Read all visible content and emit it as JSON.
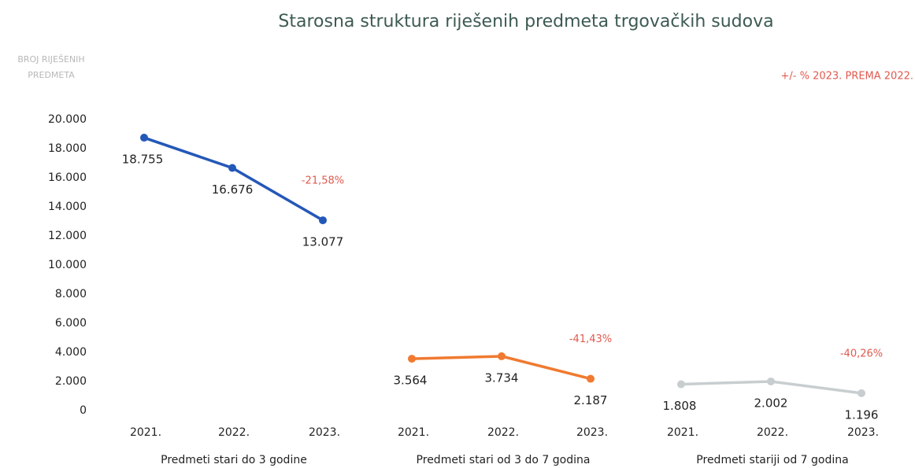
{
  "chart_data": {
    "type": "line",
    "title": "Starosna struktura riješenih predmeta trgovačkih sudova",
    "ylabel": "BROJ RIJEŠENIH PREDMETA",
    "annotation": "+/- % 2023. PREMA 2022.",
    "categories": [
      "2021.",
      "2022.",
      "2023."
    ],
    "series": [
      {
        "name": "Predmeti stari do 3 godine",
        "color": "#2458b8",
        "values": [
          18755,
          16676,
          13077
        ],
        "value_labels": [
          "18.755",
          "16.676",
          "13.077"
        ],
        "change_label": "-21,58%"
      },
      {
        "name": "Predmeti stari od 3 do 7 godina",
        "color": "#f07a30",
        "values": [
          3564,
          3734,
          2187
        ],
        "value_labels": [
          "3.564",
          "3.734",
          "2.187"
        ],
        "change_label": "-41,43%"
      },
      {
        "name": "Predmeti stariji od 7 godina",
        "color": "#c8ced0",
        "values": [
          1808,
          2002,
          1196
        ],
        "value_labels": [
          "1.808",
          "2.002",
          "1.196"
        ],
        "change_label": "-40,26%"
      }
    ],
    "ylim": [
      0,
      20000
    ],
    "yticks": [
      0,
      {
        "value": 2000,
        "label": "2.000"
      },
      {
        "value": 4000,
        "label": "4.000"
      },
      {
        "value": 6000,
        "label": "6.000"
      },
      {
        "value": 8000,
        "label": "8.000"
      },
      {
        "value": 10000,
        "label": "10.000"
      },
      {
        "value": 12000,
        "label": "12.000"
      },
      {
        "value": 14000,
        "label": "14.000"
      },
      {
        "value": 16000,
        "label": "16.000"
      },
      {
        "value": 18000,
        "label": "18.000"
      },
      {
        "value": 20000,
        "label": "20.000"
      }
    ],
    "grid": false
  }
}
